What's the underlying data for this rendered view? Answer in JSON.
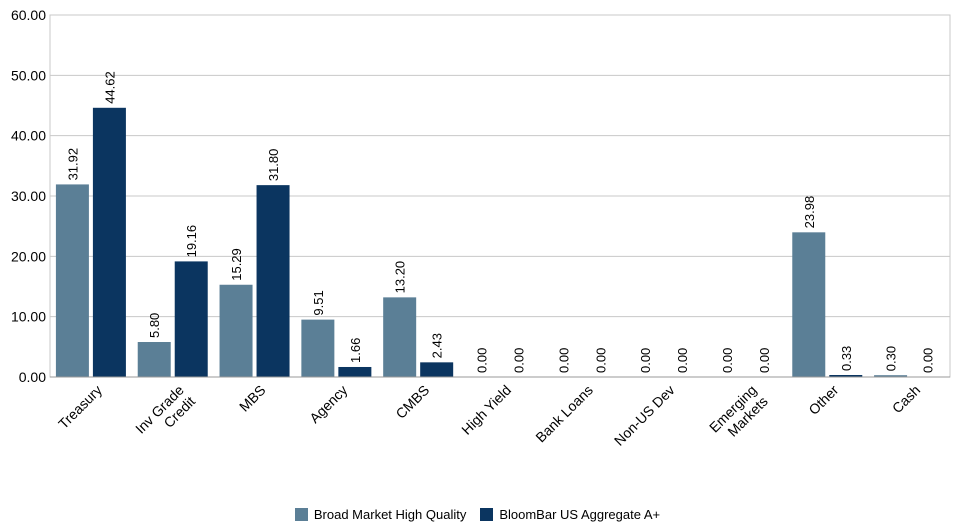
{
  "chart_data": {
    "type": "bar",
    "categories": [
      "Treasury",
      "Inv Grade Credit",
      "MBS",
      "Agency",
      "CMBS",
      "High Yield",
      "Bank Loans",
      "Non-US Dev",
      "Emerging Markets",
      "Other",
      "Cash"
    ],
    "category_lines": [
      [
        "Treasury"
      ],
      [
        "Inv Grade",
        "Credit"
      ],
      [
        "MBS"
      ],
      [
        "Agency"
      ],
      [
        "CMBS"
      ],
      [
        "High Yield"
      ],
      [
        "Bank Loans"
      ],
      [
        "Non-US Dev"
      ],
      [
        "Emerging",
        "Markets"
      ],
      [
        "Other"
      ],
      [
        "Cash"
      ]
    ],
    "series": [
      {
        "name": "Broad Market High Quality",
        "color": "#5b7f96",
        "values": [
          31.92,
          5.8,
          15.29,
          9.51,
          13.2,
          0.0,
          0.0,
          0.0,
          0.0,
          23.98,
          0.3
        ],
        "labels": [
          "31.92",
          "5.80",
          "15.29",
          "9.51",
          "13.20",
          "0.00",
          "0.00",
          "0.00",
          "0.00",
          "23.98",
          "0.30"
        ]
      },
      {
        "name": "BloomBar US Aggregate A+",
        "color": "#0b3560",
        "values": [
          44.62,
          19.16,
          31.8,
          1.66,
          2.43,
          0.0,
          0.0,
          0.0,
          0.0,
          0.33,
          0.0
        ],
        "labels": [
          "44.62",
          "19.16",
          "31.80",
          "1.66",
          "2.43",
          "0.00",
          "0.00",
          "0.00",
          "0.00",
          "0.33",
          "0.00"
        ]
      }
    ],
    "yticks": [
      "0.00",
      "10.00",
      "20.00",
      "30.00",
      "40.00",
      "50.00",
      "60.00"
    ],
    "ylim": [
      0,
      60
    ],
    "grid": true,
    "legend_position": "bottom"
  },
  "legend": {
    "items": [
      {
        "label": "Broad Market High Quality",
        "color": "#5b7f96"
      },
      {
        "label": "BloomBar US Aggregate A+",
        "color": "#0b3560"
      }
    ]
  }
}
